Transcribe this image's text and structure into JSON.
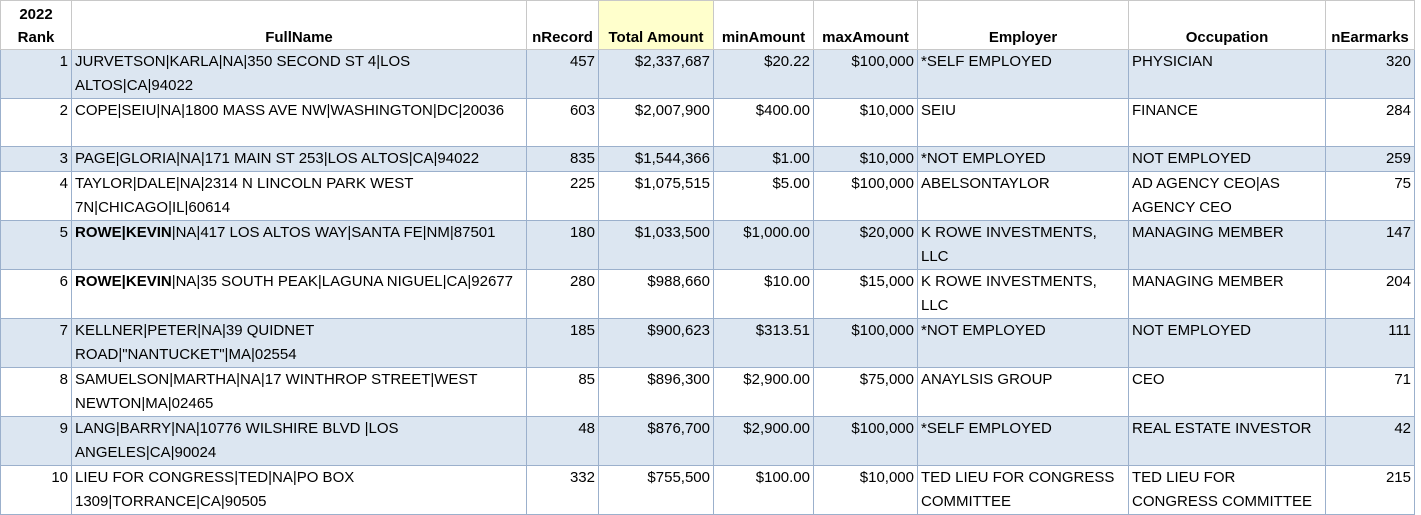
{
  "headers": {
    "rank": "2022\nRank",
    "rank_l1": "2022",
    "rank_l2": "Rank",
    "fullname": "FullName",
    "nrecord": "nRecord",
    "total": "Total Amount",
    "min": "minAmount",
    "max": "maxAmount",
    "employer": "Employer",
    "occupation": "Occupation",
    "nearmarks": "nEarmarks"
  },
  "rows": [
    {
      "rank": "1",
      "name_bold": "",
      "name_rest": "JURVETSON|KARLA|NA|350 SECOND ST 4|LOS ALTOS|CA|94022",
      "nrecord": "457",
      "total": "$2,337,687",
      "min": "$20.22",
      "max": "$100,000",
      "employer": "*SELF EMPLOYED",
      "occupation": "PHYSICIAN",
      "nearmarks": "320"
    },
    {
      "rank": "2",
      "name_bold": "",
      "name_rest": "COPE|SEIU|NA|1800 MASS AVE NW|WASHINGTON|DC|20036",
      "nrecord": "603",
      "total": "$2,007,900",
      "min": "$400.00",
      "max": "$10,000",
      "employer": "SEIU",
      "occupation": "FINANCE",
      "nearmarks": "284"
    },
    {
      "rank": "3",
      "name_bold": "",
      "name_rest": "PAGE|GLORIA|NA|171 MAIN ST 253|LOS ALTOS|CA|94022",
      "nrecord": "835",
      "total": "$1,544,366",
      "min": "$1.00",
      "max": "$10,000",
      "employer": "*NOT EMPLOYED",
      "occupation": "NOT EMPLOYED",
      "nearmarks": "259"
    },
    {
      "rank": "4",
      "name_bold": "",
      "name_rest": "TAYLOR|DALE|NA|2314 N LINCOLN PARK WEST 7N|CHICAGO|IL|60614",
      "nrecord": "225",
      "total": "$1,075,515",
      "min": "$5.00",
      "max": "$100,000",
      "employer": "ABELSONTAYLOR",
      "occupation": "AD AGENCY CEO|AS AGENCY CEO",
      "nearmarks": "75"
    },
    {
      "rank": "5",
      "name_bold": "ROWE|KEVIN",
      "name_rest": "|NA|417 LOS ALTOS WAY|SANTA FE|NM|87501",
      "nrecord": "180",
      "total": "$1,033,500",
      "min": "$1,000.00",
      "max": "$20,000",
      "employer": "K ROWE INVESTMENTS, LLC",
      "occupation": "MANAGING MEMBER",
      "nearmarks": "147"
    },
    {
      "rank": "6",
      "name_bold": "ROWE|KEVIN",
      "name_rest": "|NA|35 SOUTH PEAK|LAGUNA NIGUEL|CA|92677",
      "nrecord": "280",
      "total": "$988,660",
      "min": "$10.00",
      "max": "$15,000",
      "employer": "K ROWE INVESTMENTS, LLC",
      "occupation": "MANAGING MEMBER",
      "nearmarks": "204"
    },
    {
      "rank": "7",
      "name_bold": "",
      "name_rest": "KELLNER|PETER|NA|39 QUIDNET ROAD|\"NANTUCKET\"|MA|02554",
      "nrecord": "185",
      "total": "$900,623",
      "min": "$313.51",
      "max": "$100,000",
      "employer": "*NOT EMPLOYED",
      "occupation": "NOT EMPLOYED",
      "nearmarks": "111"
    },
    {
      "rank": "8",
      "name_bold": "",
      "name_rest": "SAMUELSON|MARTHA|NA|17 WINTHROP STREET|WEST NEWTON|MA|02465",
      "nrecord": "85",
      "total": "$896,300",
      "min": "$2,900.00",
      "max": "$75,000",
      "employer": "ANAYLSIS GROUP",
      "occupation": "CEO",
      "nearmarks": "71"
    },
    {
      "rank": "9",
      "name_bold": "",
      "name_rest": "LANG|BARRY|NA|10776 WILSHIRE BLVD |LOS ANGELES|CA|90024",
      "nrecord": "48",
      "total": "$876,700",
      "min": "$2,900.00",
      "max": "$100,000",
      "employer": "*SELF EMPLOYED",
      "occupation": "REAL ESTATE INVESTOR",
      "nearmarks": "42"
    },
    {
      "rank": "10",
      "name_bold": "",
      "name_rest": "LIEU FOR CONGRESS|TED|NA|PO BOX 1309|TORRANCE|CA|90505",
      "nrecord": "332",
      "total": "$755,500",
      "min": "$100.00",
      "max": "$10,000",
      "employer": "TED LIEU FOR CONGRESS COMMITTEE",
      "occupation": "TED LIEU FOR CONGRESS COMMITTEE",
      "nearmarks": "215"
    }
  ]
}
